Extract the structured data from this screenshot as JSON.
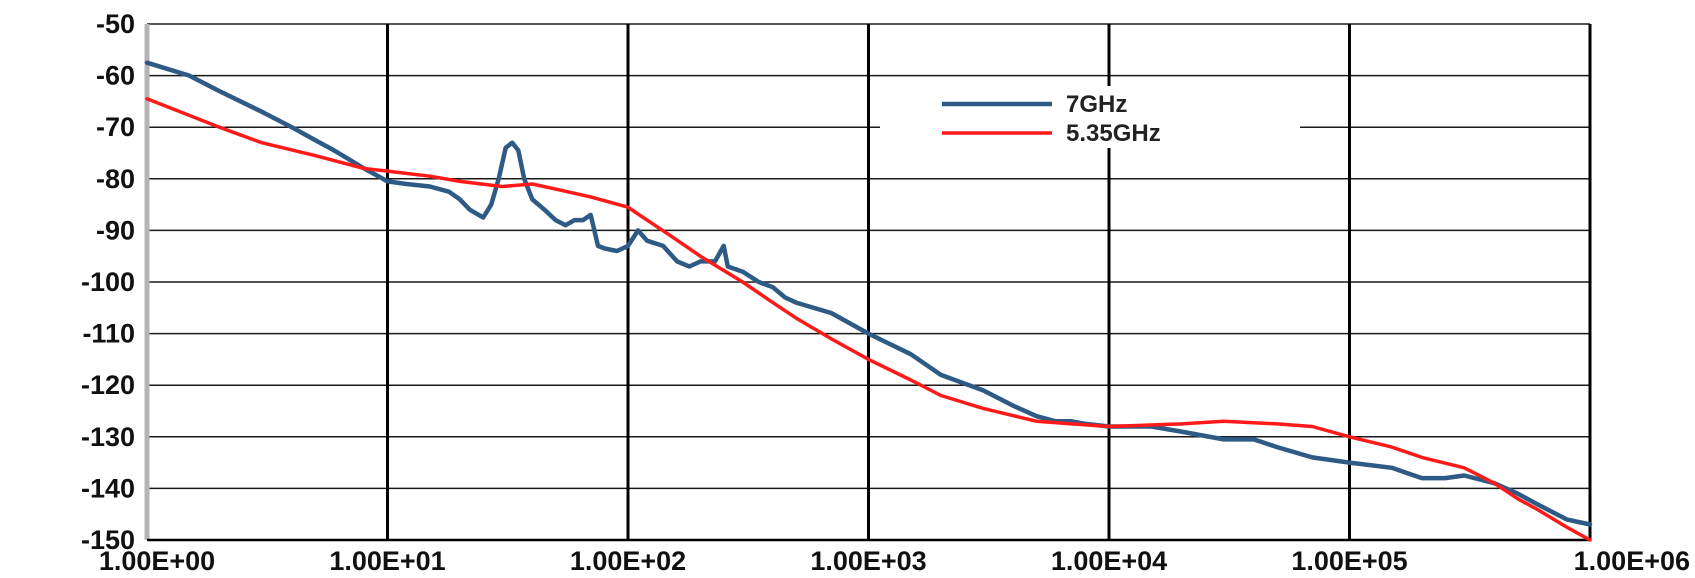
{
  "chart_data": {
    "type": "line",
    "title": "",
    "xlabel": "",
    "ylabel": "",
    "x_scale": "log",
    "xlim": [
      1,
      1000000
    ],
    "ylim": [
      -150,
      -50
    ],
    "x_ticks": [
      1,
      10,
      100,
      1000,
      10000,
      100000,
      1000000
    ],
    "x_tick_labels": [
      "1.00E+00",
      "1.00E+01",
      "1.00E+02",
      "1.00E+03",
      "1.00E+04",
      "1.00E+05",
      "1.00E+06"
    ],
    "y_ticks": [
      -50,
      -60,
      -70,
      -80,
      -90,
      -100,
      -110,
      -120,
      -130,
      -140,
      -150
    ],
    "y_tick_labels": [
      "-50",
      "-60",
      "-70",
      "-80",
      "-90",
      "-100",
      "-110",
      "-120",
      "-130",
      "-140",
      "-150"
    ],
    "grid": true,
    "legend_position": "top-right",
    "series": [
      {
        "name": "7GHz",
        "color": "#2e5a86",
        "points": [
          [
            1,
            -57.5
          ],
          [
            1.5,
            -60
          ],
          [
            2,
            -63
          ],
          [
            3,
            -67
          ],
          [
            4,
            -70
          ],
          [
            5,
            -72.5
          ],
          [
            6,
            -74.5
          ],
          [
            8,
            -78
          ],
          [
            10,
            -80.5
          ],
          [
            12,
            -81
          ],
          [
            15,
            -81.5
          ],
          [
            18,
            -82.5
          ],
          [
            20,
            -84
          ],
          [
            22,
            -86
          ],
          [
            25,
            -87.5
          ],
          [
            27,
            -85
          ],
          [
            29,
            -80
          ],
          [
            31,
            -74
          ],
          [
            33,
            -73
          ],
          [
            35,
            -74.5
          ],
          [
            37,
            -80
          ],
          [
            40,
            -84
          ],
          [
            45,
            -86
          ],
          [
            50,
            -88
          ],
          [
            55,
            -89
          ],
          [
            60,
            -88
          ],
          [
            65,
            -88
          ],
          [
            70,
            -87
          ],
          [
            75,
            -93
          ],
          [
            80,
            -93.5
          ],
          [
            90,
            -94
          ],
          [
            100,
            -93
          ],
          [
            110,
            -90
          ],
          [
            120,
            -92
          ],
          [
            140,
            -93
          ],
          [
            160,
            -96
          ],
          [
            180,
            -97
          ],
          [
            200,
            -96
          ],
          [
            230,
            -96
          ],
          [
            250,
            -93
          ],
          [
            260,
            -97
          ],
          [
            300,
            -98
          ],
          [
            350,
            -100
          ],
          [
            400,
            -101
          ],
          [
            450,
            -103
          ],
          [
            500,
            -104
          ],
          [
            700,
            -106
          ],
          [
            1000,
            -110
          ],
          [
            1500,
            -114
          ],
          [
            2000,
            -118
          ],
          [
            3000,
            -121
          ],
          [
            4000,
            -124
          ],
          [
            5000,
            -126
          ],
          [
            6000,
            -127
          ],
          [
            7000,
            -127
          ],
          [
            8000,
            -127.5
          ],
          [
            10000,
            -128
          ],
          [
            15000,
            -128
          ],
          [
            20000,
            -129
          ],
          [
            30000,
            -130.5
          ],
          [
            40000,
            -130.5
          ],
          [
            50000,
            -132
          ],
          [
            70000,
            -134
          ],
          [
            100000,
            -135
          ],
          [
            150000,
            -136
          ],
          [
            200000,
            -138
          ],
          [
            250000,
            -138
          ],
          [
            300000,
            -137.5
          ],
          [
            400000,
            -139
          ],
          [
            500000,
            -141
          ],
          [
            600000,
            -143
          ],
          [
            800000,
            -146
          ],
          [
            1000000,
            -147
          ]
        ]
      },
      {
        "name": "5.35GHz",
        "color": "#ff1a1a",
        "points": [
          [
            1,
            -64.5
          ],
          [
            2,
            -70
          ],
          [
            3,
            -73
          ],
          [
            5,
            -75.5
          ],
          [
            8,
            -78
          ],
          [
            10,
            -78.5
          ],
          [
            15,
            -79.5
          ],
          [
            20,
            -80.5
          ],
          [
            30,
            -81.5
          ],
          [
            40,
            -81
          ],
          [
            50,
            -82
          ],
          [
            70,
            -83.5
          ],
          [
            100,
            -85.5
          ],
          [
            120,
            -88
          ],
          [
            150,
            -91
          ],
          [
            200,
            -95
          ],
          [
            300,
            -100
          ],
          [
            400,
            -104
          ],
          [
            500,
            -107
          ],
          [
            700,
            -111
          ],
          [
            1000,
            -115
          ],
          [
            1500,
            -119
          ],
          [
            2000,
            -122
          ],
          [
            3000,
            -124.5
          ],
          [
            5000,
            -127
          ],
          [
            7000,
            -127.5
          ],
          [
            10000,
            -128
          ],
          [
            20000,
            -127.5
          ],
          [
            30000,
            -127
          ],
          [
            50000,
            -127.5
          ],
          [
            70000,
            -128
          ],
          [
            100000,
            -130
          ],
          [
            150000,
            -132
          ],
          [
            200000,
            -134
          ],
          [
            300000,
            -136
          ],
          [
            400000,
            -139
          ],
          [
            500000,
            -142
          ],
          [
            600000,
            -144
          ],
          [
            800000,
            -147.5
          ],
          [
            1000000,
            -150
          ]
        ]
      }
    ]
  }
}
